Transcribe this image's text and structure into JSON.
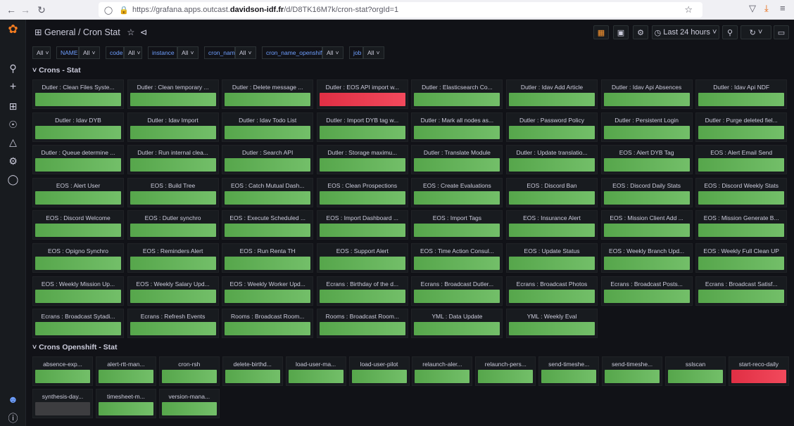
{
  "browser": {
    "url_prefix": "https://grafana.apps.outcast.",
    "url_domain": "davidson-idf.fr",
    "url_suffix": "/d/D8TK16M7k/cron-stat?orgId=1"
  },
  "breadcrumb": {
    "folder": "General",
    "separator": "/",
    "dashboard": "Cron Stat"
  },
  "toolbar": {
    "time_range": "Last 24 hours"
  },
  "variables": [
    {
      "label": "",
      "value": "All"
    },
    {
      "label": "NAME",
      "value": "All"
    },
    {
      "label": "code",
      "value": "All"
    },
    {
      "label": "instance",
      "value": "All"
    },
    {
      "label": "cron_name",
      "value": "All"
    },
    {
      "label": "cron_name_openshift",
      "value": "All"
    },
    {
      "label": "job",
      "value": "All"
    }
  ],
  "rows": [
    {
      "title": "Crons - Stat",
      "panels": [
        {
          "title": "Dutler : Clean Files Syste...",
          "status": "ok"
        },
        {
          "title": "Dutler : Clean temporary ...",
          "status": "ok"
        },
        {
          "title": "Dutler : Delete message ...",
          "status": "ok"
        },
        {
          "title": "Dutler : EOS API import w...",
          "status": "bad"
        },
        {
          "title": "Dutler : Elasticsearch Co...",
          "status": "ok"
        },
        {
          "title": "Dutler : Idav Add Article",
          "status": "ok"
        },
        {
          "title": "Dutler : Idav Api Absences",
          "status": "ok"
        },
        {
          "title": "Dutler : Idav Api NDF",
          "status": "ok"
        },
        {
          "title": "Dutler : Idav DYB",
          "status": "ok"
        },
        {
          "title": "Dutler : Idav Import",
          "status": "ok"
        },
        {
          "title": "Dutler : Idav Todo List",
          "status": "ok"
        },
        {
          "title": "Dutler : Import DYB tag w...",
          "status": "ok"
        },
        {
          "title": "Dutler : Mark all nodes as...",
          "status": "ok"
        },
        {
          "title": "Dutler : Password Policy",
          "status": "ok"
        },
        {
          "title": "Dutler : Persistent Login",
          "status": "ok"
        },
        {
          "title": "Dutler : Purge deleted fiel...",
          "status": "ok"
        },
        {
          "title": "Dutler : Queue determine ...",
          "status": "ok"
        },
        {
          "title": "Dutler : Run internal clea...",
          "status": "ok"
        },
        {
          "title": "Dutler : Search API",
          "status": "ok"
        },
        {
          "title": "Dutler : Storage maximu...",
          "status": "ok"
        },
        {
          "title": "Dutler : Translate Module",
          "status": "ok"
        },
        {
          "title": "Dutler : Update translatio...",
          "status": "ok"
        },
        {
          "title": "EOS : Alert DYB Tag",
          "status": "ok"
        },
        {
          "title": "EOS : Alert Email Send",
          "status": "ok"
        },
        {
          "title": "EOS : Alert User",
          "status": "ok"
        },
        {
          "title": "EOS : Build Tree",
          "status": "ok"
        },
        {
          "title": "EOS : Catch Mutual Dash...",
          "status": "ok"
        },
        {
          "title": "EOS : Clean Prospections",
          "status": "ok"
        },
        {
          "title": "EOS : Create Evaluations",
          "status": "ok"
        },
        {
          "title": "EOS : Discord Ban",
          "status": "ok"
        },
        {
          "title": "EOS : Discord Daily Stats",
          "status": "ok"
        },
        {
          "title": "EOS : Discord Weekly Stats",
          "status": "ok"
        },
        {
          "title": "EOS : Discord Welcome",
          "status": "ok"
        },
        {
          "title": "EOS : Dutler synchro",
          "status": "ok"
        },
        {
          "title": "EOS : Execute Scheduled ...",
          "status": "ok"
        },
        {
          "title": "EOS : Import Dashboard ...",
          "status": "ok"
        },
        {
          "title": "EOS : Import Tags",
          "status": "ok"
        },
        {
          "title": "EOS : Insurance Alert",
          "status": "ok"
        },
        {
          "title": "EOS : Mission Client Add ...",
          "status": "ok"
        },
        {
          "title": "EOS : Mission Generate B...",
          "status": "ok"
        },
        {
          "title": "EOS : Opigno Synchro",
          "status": "ok"
        },
        {
          "title": "EOS : Reminders Alert",
          "status": "ok"
        },
        {
          "title": "EOS : Run Renta TH",
          "status": "ok"
        },
        {
          "title": "EOS : Support Alert",
          "status": "ok"
        },
        {
          "title": "EOS : Time Action Consul...",
          "status": "ok"
        },
        {
          "title": "EOS : Update Status",
          "status": "ok"
        },
        {
          "title": "EOS : Weekly Branch Upd...",
          "status": "ok"
        },
        {
          "title": "EOS : Weekly Full Clean UP",
          "status": "ok"
        },
        {
          "title": "EOS : Weekly Mission Up...",
          "status": "ok"
        },
        {
          "title": "EOS : Weekly Salary Upd...",
          "status": "ok"
        },
        {
          "title": "EOS : Weekly Worker Upd...",
          "status": "ok"
        },
        {
          "title": "Ecrans : Birthday of the d...",
          "status": "ok"
        },
        {
          "title": "Ecrans : Broadcast Dutler...",
          "status": "ok"
        },
        {
          "title": "Ecrans : Broadcast Photos",
          "status": "ok"
        },
        {
          "title": "Ecrans : Broadcast Posts...",
          "status": "ok"
        },
        {
          "title": "Ecrans : Broadcast Satisf...",
          "status": "ok"
        },
        {
          "title": "Ecrans : Broadcast Sytadi...",
          "status": "ok"
        },
        {
          "title": "Ecrans : Refresh Events",
          "status": "ok"
        },
        {
          "title": "Rooms : Broadcast Room...",
          "status": "ok"
        },
        {
          "title": "Rooms : Broadcast Room...",
          "status": "ok"
        },
        {
          "title": "YML : Data Update",
          "status": "ok"
        },
        {
          "title": "YML : Weekly Eval",
          "status": "ok"
        }
      ]
    },
    {
      "title": "Crons Openshift - Stat",
      "panels": [
        {
          "title": "absence-exp...",
          "status": "ok"
        },
        {
          "title": "alert-rtt-man...",
          "status": "ok"
        },
        {
          "title": "cron-rsh",
          "status": "ok"
        },
        {
          "title": "delete-birthd...",
          "status": "ok"
        },
        {
          "title": "load-user-ma...",
          "status": "ok"
        },
        {
          "title": "load-user-pilot",
          "status": "ok"
        },
        {
          "title": "relaunch-aler...",
          "status": "ok"
        },
        {
          "title": "relaunch-pers...",
          "status": "ok"
        },
        {
          "title": "send-timeshe...",
          "status": "ok"
        },
        {
          "title": "send-timeshe...",
          "status": "ok"
        },
        {
          "title": "sslscan",
          "status": "ok"
        },
        {
          "title": "start-reco-daily",
          "status": "bad"
        },
        {
          "title": "synthesis-day...",
          "status": "nodata"
        },
        {
          "title": "timesheet-m...",
          "status": "ok"
        },
        {
          "title": "version-mana...",
          "status": "ok"
        }
      ]
    }
  ],
  "colors": {
    "ok": "#73bf69",
    "bad": "#f2495c",
    "nodata": "#3d3d40",
    "background": "#111217"
  },
  "icons": [
    "back-icon",
    "forward-icon",
    "reload-icon",
    "shield-icon",
    "lock-icon",
    "bookmark-star-icon",
    "pocket-icon",
    "download-icon",
    "menu-icon",
    "grafana-logo-icon",
    "search-icon",
    "plus-icon",
    "dashboards-icon",
    "explore-icon",
    "alerting-icon",
    "configuration-icon",
    "server-admin-icon",
    "user-avatar-icon",
    "help-icon",
    "dashboard-grid-icon",
    "star-icon",
    "share-icon",
    "add-panel-icon",
    "save-icon",
    "settings-icon",
    "clock-icon",
    "zoom-out-icon",
    "refresh-icon",
    "tv-mode-icon"
  ]
}
